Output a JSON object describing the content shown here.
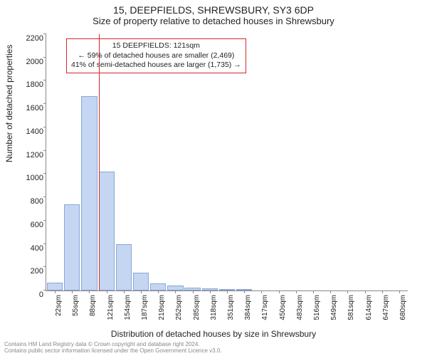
{
  "titles": {
    "line1": "15, DEEPFIELDS, SHREWSBURY, SY3 6DP",
    "line2": "Size of property relative to detached houses in Shrewsbury"
  },
  "ylabel": "Number of detached properties",
  "xlabel": "Distribution of detached houses by size in Shrewsbury",
  "footer": {
    "line1": "Contains HM Land Registry data © Crown copyright and database right 2024.",
    "line2": "Contains public sector information licensed under the Open Government Licence v3.0."
  },
  "chart": {
    "type": "histogram",
    "ylim": [
      0,
      2200
    ],
    "ytick_step": 200,
    "bar_fill": "#c4d6f2",
    "bar_stroke": "#8aa7d6",
    "ref_line_color": "#d62728",
    "ref_line_x": 121,
    "background": "#ffffff",
    "bars": [
      {
        "x": 22,
        "v": 70
      },
      {
        "x": 55,
        "v": 740
      },
      {
        "x": 88,
        "v": 1670
      },
      {
        "x": 121,
        "v": 1020
      },
      {
        "x": 154,
        "v": 400
      },
      {
        "x": 187,
        "v": 150
      },
      {
        "x": 219,
        "v": 60
      },
      {
        "x": 252,
        "v": 40
      },
      {
        "x": 285,
        "v": 25
      },
      {
        "x": 318,
        "v": 20
      },
      {
        "x": 351,
        "v": 15
      },
      {
        "x": 384,
        "v": 15
      },
      {
        "x": 417,
        "v": 0
      },
      {
        "x": 450,
        "v": 0
      },
      {
        "x": 483,
        "v": 0
      },
      {
        "x": 516,
        "v": 0
      },
      {
        "x": 549,
        "v": 0
      },
      {
        "x": 581,
        "v": 0
      },
      {
        "x": 614,
        "v": 0
      },
      {
        "x": 647,
        "v": 0
      },
      {
        "x": 680,
        "v": 0
      }
    ],
    "xtick_labels": [
      "22sqm",
      "55sqm",
      "88sqm",
      "121sqm",
      "154sqm",
      "187sqm",
      "219sqm",
      "252sqm",
      "285sqm",
      "318sqm",
      "351sqm",
      "384sqm",
      "417sqm",
      "450sqm",
      "483sqm",
      "516sqm",
      "549sqm",
      "581sqm",
      "614sqm",
      "647sqm",
      "680sqm"
    ]
  },
  "annotation": {
    "line1": "15 DEEPFIELDS: 121sqm",
    "line2": "← 59% of detached houses are smaller (2,469)",
    "line3": "41% of semi-detached houses are larger (1,735) →"
  }
}
